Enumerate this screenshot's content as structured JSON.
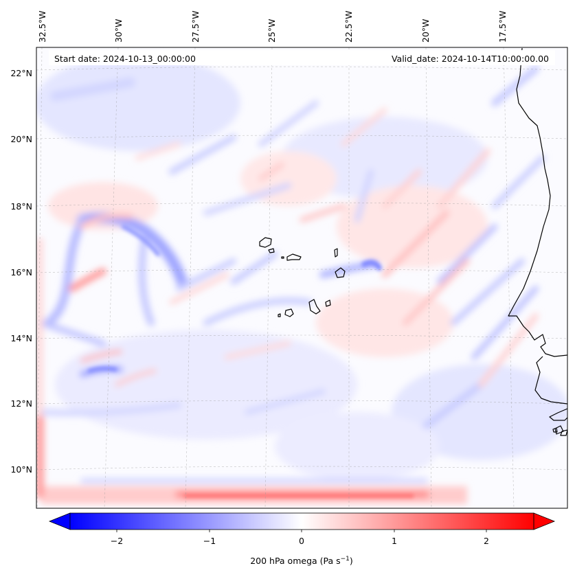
{
  "map": {
    "start_label": "Start date: 2024-10-13_00:00:00",
    "valid_label": "Valid_date: 2024-10-14T10:00:00.00",
    "lon_labels": [
      "32.5°W",
      "30°W",
      "27.5°W",
      "25°W",
      "22.5°W",
      "20°W",
      "17.5°W"
    ],
    "lat_labels": [
      "22°N",
      "20°N",
      "18°N",
      "16°N",
      "14°N",
      "12°N",
      "10°N"
    ],
    "field": "200 hPa omega",
    "units": "Pa s⁻¹"
  },
  "colorbar": {
    "ticks": [
      "−2",
      "−1",
      "0",
      "1",
      "2"
    ],
    "min": -2.6,
    "max": 2.6,
    "cmap": "bwr",
    "colors": {
      "negative": "#0000ff",
      "zero": "#ffffff",
      "positive": "#ff0000"
    },
    "label_base": "200 hPa omega (Pa s",
    "label_exp": "−1",
    "label_end": ")"
  }
}
